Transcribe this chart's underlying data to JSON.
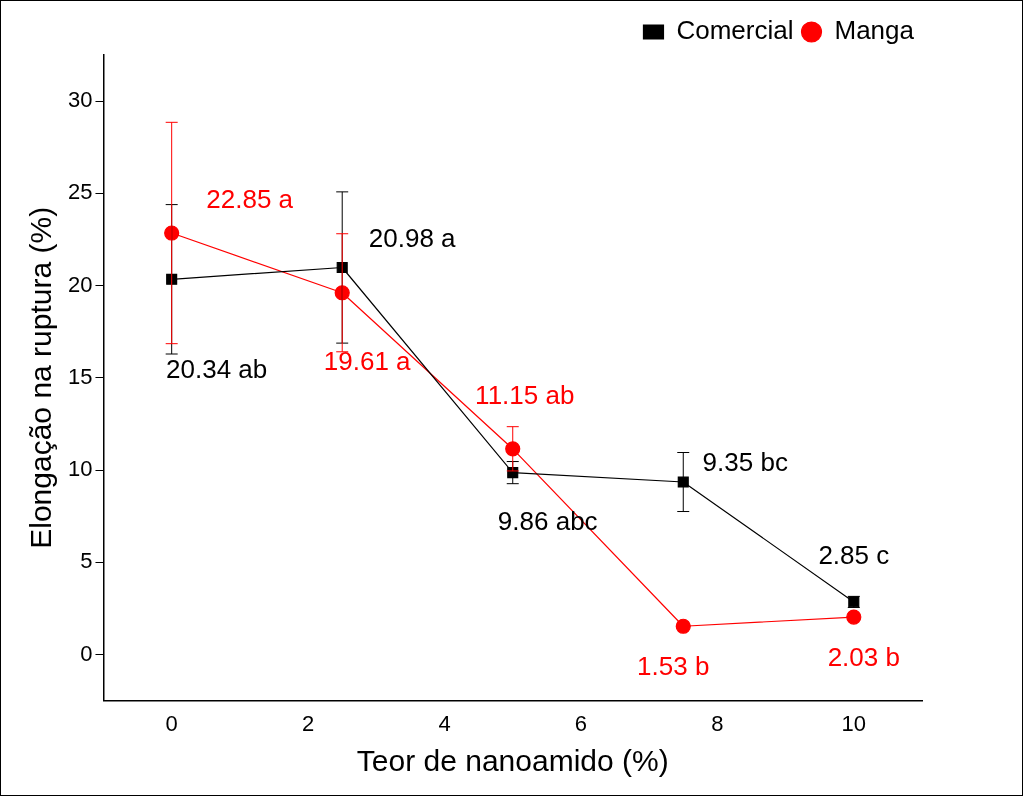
{
  "chart_data": {
    "type": "line",
    "xlabel": "Teor de nanoamido (%)",
    "ylabel": "Elongação na ruptura (%)",
    "x": [
      0,
      2.5,
      5,
      7.5,
      10
    ],
    "series": [
      {
        "name": "Comercial",
        "color": "#000000",
        "marker": "square",
        "values": [
          20.34,
          20.98,
          9.86,
          9.35,
          2.85
        ],
        "errors": [
          4.05,
          4.1,
          0.6,
          1.6,
          0.3
        ],
        "value_labels": [
          "20.34 ab",
          "20.98 a",
          "9.86 abc",
          "9.35 bc",
          "2.85 c"
        ]
      },
      {
        "name": "Manga",
        "color": "#ff0000",
        "marker": "circle",
        "values": [
          22.85,
          19.61,
          11.15,
          1.53,
          2.03
        ],
        "errors": [
          6.0,
          3.2,
          1.2,
          null,
          null
        ],
        "value_labels": [
          "22.85 a",
          "19.61 a",
          "11.15 ab",
          "1.53 b",
          "2.03 b"
        ]
      }
    ],
    "xlim": [
      -1,
      11
    ],
    "xticks": [
      0,
      2,
      4,
      6,
      8,
      10
    ],
    "ylim": [
      -2.5,
      32.5
    ],
    "yticks": [
      0,
      5,
      10,
      15,
      20,
      25,
      30
    ],
    "legend": "top right",
    "grid": false
  }
}
